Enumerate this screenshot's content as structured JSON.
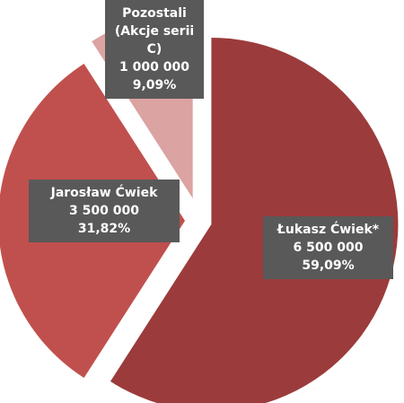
{
  "chart_data": {
    "type": "pie",
    "categories": [
      "Łukasz Ćwiek*",
      "Jarosław Ćwiek",
      "Pozostali (Akcje serii C)"
    ],
    "values": [
      6500000,
      3500000,
      1000000
    ],
    "value_labels": [
      "6 500 000",
      "3 500 000",
      "1 000 000"
    ],
    "percentages": [
      59.09,
      31.82,
      9.09
    ],
    "percentage_labels": [
      "59,09%",
      "31,82%",
      "9,09%"
    ],
    "colors": [
      "#9c3b3b",
      "#c0504d",
      "#dba3a2"
    ]
  }
}
